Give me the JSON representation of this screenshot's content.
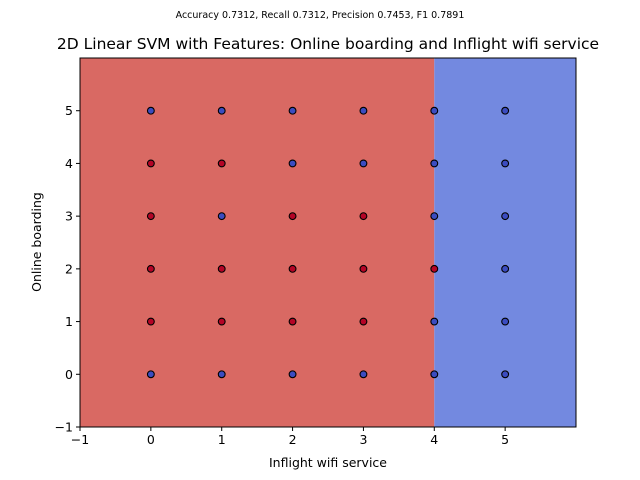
{
  "chart_data": {
    "type": "scatter",
    "suptitle": "Accuracy 0.7312, Recall 0.7312, Precision 0.7453, F1 0.7891",
    "title": "2D Linear SVM with Features: Online boarding and Inflight wifi service",
    "xlabel": "Inflight wifi service",
    "ylabel": "Online boarding",
    "xlim": [
      -1,
      6
    ],
    "ylim": [
      -1,
      6
    ],
    "xticks": [
      -1,
      0,
      1,
      2,
      3,
      4,
      5
    ],
    "yticks": [
      -1,
      0,
      1,
      2,
      3,
      4,
      5
    ],
    "grid": false,
    "decision_boundary_x": 4,
    "regions": [
      {
        "name": "class-0",
        "x_range": [
          -1,
          4
        ],
        "color": "#d96963"
      },
      {
        "name": "class-1",
        "x_range": [
          4,
          6
        ],
        "color": "#7389e0"
      }
    ],
    "class_colors": {
      "0": "#b40426",
      "1": "#3b4cc0"
    },
    "points": [
      {
        "x": 0,
        "y": 5,
        "cls": 1
      },
      {
        "x": 1,
        "y": 5,
        "cls": 1
      },
      {
        "x": 2,
        "y": 5,
        "cls": 1
      },
      {
        "x": 3,
        "y": 5,
        "cls": 1
      },
      {
        "x": 4,
        "y": 5,
        "cls": 1
      },
      {
        "x": 5,
        "y": 5,
        "cls": 1
      },
      {
        "x": 0,
        "y": 4,
        "cls": 0
      },
      {
        "x": 1,
        "y": 4,
        "cls": 0
      },
      {
        "x": 2,
        "y": 4,
        "cls": 1
      },
      {
        "x": 3,
        "y": 4,
        "cls": 1
      },
      {
        "x": 4,
        "y": 4,
        "cls": 1
      },
      {
        "x": 5,
        "y": 4,
        "cls": 1
      },
      {
        "x": 0,
        "y": 3,
        "cls": 0
      },
      {
        "x": 1,
        "y": 3,
        "cls": 1
      },
      {
        "x": 2,
        "y": 3,
        "cls": 0
      },
      {
        "x": 3,
        "y": 3,
        "cls": 0
      },
      {
        "x": 4,
        "y": 3,
        "cls": 1
      },
      {
        "x": 5,
        "y": 3,
        "cls": 1
      },
      {
        "x": 0,
        "y": 2,
        "cls": 0
      },
      {
        "x": 1,
        "y": 2,
        "cls": 0
      },
      {
        "x": 2,
        "y": 2,
        "cls": 0
      },
      {
        "x": 3,
        "y": 2,
        "cls": 0
      },
      {
        "x": 4,
        "y": 2,
        "cls": 0
      },
      {
        "x": 5,
        "y": 2,
        "cls": 1
      },
      {
        "x": 0,
        "y": 1,
        "cls": 0
      },
      {
        "x": 1,
        "y": 1,
        "cls": 0
      },
      {
        "x": 2,
        "y": 1,
        "cls": 0
      },
      {
        "x": 3,
        "y": 1,
        "cls": 0
      },
      {
        "x": 4,
        "y": 1,
        "cls": 1
      },
      {
        "x": 5,
        "y": 1,
        "cls": 1
      },
      {
        "x": 0,
        "y": 0,
        "cls": 1
      },
      {
        "x": 1,
        "y": 0,
        "cls": 1
      },
      {
        "x": 2,
        "y": 0,
        "cls": 1
      },
      {
        "x": 3,
        "y": 0,
        "cls": 1
      },
      {
        "x": 4,
        "y": 0,
        "cls": 1
      },
      {
        "x": 5,
        "y": 0,
        "cls": 1
      }
    ]
  }
}
